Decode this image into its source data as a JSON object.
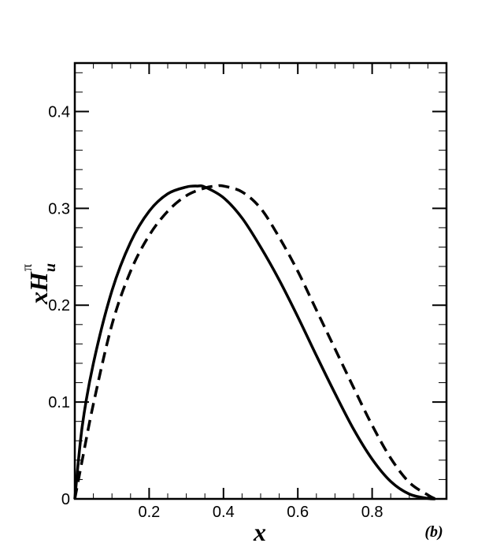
{
  "chart_data": {
    "type": "line",
    "panel_label": "(b)",
    "xlabel": "x",
    "ylabel": {
      "base": "xH",
      "subscript": "u",
      "superscript": "π"
    },
    "xlim": [
      0,
      1
    ],
    "ylim": [
      0,
      0.45
    ],
    "x_ticks": [
      0.2,
      0.4,
      0.6,
      0.8
    ],
    "x_tick_labels": [
      "0.2",
      "0.4",
      "0.6",
      "0.8"
    ],
    "y_ticks": [
      0,
      0.1,
      0.2,
      0.3,
      0.4
    ],
    "y_tick_labels": [
      "0",
      "0.1",
      "0.2",
      "0.3",
      "0.4"
    ],
    "grid": false,
    "legend": "none",
    "series": [
      {
        "style": "solid",
        "color": "#000000",
        "x": [
          0,
          0.02,
          0.05,
          0.1,
          0.15,
          0.2,
          0.25,
          0.3,
          0.33,
          0.35,
          0.4,
          0.45,
          0.5,
          0.55,
          0.6,
          0.65,
          0.7,
          0.75,
          0.8,
          0.85,
          0.9,
          0.95,
          0.97
        ],
        "y": [
          0,
          0.075,
          0.14,
          0.215,
          0.265,
          0.297,
          0.315,
          0.322,
          0.323,
          0.322,
          0.311,
          0.29,
          0.26,
          0.226,
          0.188,
          0.148,
          0.109,
          0.072,
          0.041,
          0.018,
          0.005,
          0.0005,
          0
        ]
      },
      {
        "style": "dashed",
        "color": "#000000",
        "x": [
          0,
          0.02,
          0.05,
          0.1,
          0.15,
          0.2,
          0.25,
          0.3,
          0.35,
          0.38,
          0.4,
          0.45,
          0.5,
          0.55,
          0.6,
          0.65,
          0.7,
          0.75,
          0.8,
          0.85,
          0.9,
          0.95,
          0.97
        ],
        "y": [
          0,
          0.04,
          0.098,
          0.18,
          0.235,
          0.272,
          0.297,
          0.313,
          0.321,
          0.323,
          0.323,
          0.317,
          0.3,
          0.27,
          0.235,
          0.195,
          0.155,
          0.115,
          0.076,
          0.042,
          0.017,
          0.004,
          0
        ]
      }
    ]
  }
}
